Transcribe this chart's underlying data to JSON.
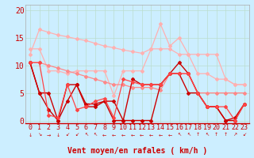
{
  "background_color": "#cceeff",
  "grid_color": "#aaddcc",
  "xlabel": "Vent moyen/en rafales ( km/h )",
  "xlabel_color": "#cc0000",
  "xlabel_fontsize": 7,
  "yticks": [
    0,
    5,
    10,
    15,
    20
  ],
  "xticks": [
    0,
    1,
    2,
    3,
    4,
    5,
    6,
    7,
    8,
    9,
    10,
    11,
    12,
    13,
    14,
    15,
    16,
    17,
    18,
    19,
    20,
    21,
    22,
    23
  ],
  "ylim": [
    -0.5,
    21
  ],
  "xlim": [
    -0.5,
    23.5
  ],
  "series": [
    {
      "comment": "light pink top - nearly straight diagonal from ~16.5 to ~6.5",
      "x": [
        0,
        1,
        2,
        3,
        4,
        5,
        6,
        7,
        8,
        9,
        10,
        11,
        12,
        13,
        14,
        15,
        16,
        17,
        18,
        19,
        20,
        21,
        22,
        23
      ],
      "y": [
        12,
        16.5,
        16.0,
        15.5,
        15.2,
        14.8,
        14.5,
        14.0,
        13.5,
        13.2,
        12.8,
        12.5,
        12.2,
        13.0,
        13.0,
        13.0,
        12.0,
        12.0,
        12.0,
        12.0,
        12.0,
        7.5,
        6.5,
        6.5
      ],
      "color": "#ffb0b0",
      "lw": 0.9,
      "marker": "D",
      "ms": 2.0
    },
    {
      "comment": "light pink second - humped line with peak at 14-16 area",
      "x": [
        0,
        1,
        2,
        3,
        4,
        5,
        6,
        7,
        8,
        9,
        10,
        11,
        12,
        13,
        14,
        15,
        16,
        17,
        18,
        19,
        20,
        21,
        22,
        23
      ],
      "y": [
        13,
        13,
        9,
        9,
        8.5,
        9.0,
        9.0,
        9.0,
        9.0,
        4.5,
        9.0,
        9.0,
        9.0,
        13.0,
        17.5,
        13.5,
        15.0,
        12.0,
        8.5,
        8.5,
        7.5,
        7.5,
        6.5,
        6.5
      ],
      "color": "#ffb0b0",
      "lw": 0.9,
      "marker": "D",
      "ms": 2.0
    },
    {
      "comment": "medium pink line - middle region",
      "x": [
        0,
        1,
        2,
        3,
        4,
        5,
        6,
        7,
        8,
        9,
        10,
        11,
        12,
        13,
        14,
        15,
        16,
        17,
        18,
        19,
        20,
        21,
        22,
        23
      ],
      "y": [
        10.5,
        10.5,
        10.0,
        9.5,
        9.0,
        8.5,
        8.0,
        7.5,
        7.0,
        6.5,
        6.5,
        6.0,
        6.0,
        6.0,
        5.5,
        8.5,
        8.5,
        8.5,
        5.0,
        5.0,
        5.0,
        5.0,
        5.0,
        5.0
      ],
      "color": "#ff8888",
      "lw": 0.9,
      "marker": "D",
      "ms": 2.0
    },
    {
      "comment": "dark red line 1 - zigzag bottom",
      "x": [
        0,
        1,
        2,
        3,
        4,
        5,
        6,
        7,
        8,
        9,
        10,
        11,
        12,
        13,
        14,
        15,
        16,
        17,
        18,
        19,
        20,
        21,
        22,
        23
      ],
      "y": [
        10.5,
        5.0,
        5.0,
        0.0,
        6.5,
        6.5,
        2.5,
        2.5,
        3.5,
        0.0,
        0.0,
        0.0,
        0.0,
        0.0,
        6.5,
        8.5,
        8.5,
        5.0,
        5.0,
        2.5,
        2.5,
        0.0,
        0.0,
        3.0
      ],
      "color": "#cc0000",
      "lw": 1.0,
      "marker": "D",
      "ms": 2.0
    },
    {
      "comment": "dark red line 2 - slightly different zigzag",
      "x": [
        0,
        1,
        2,
        3,
        4,
        5,
        6,
        7,
        8,
        9,
        10,
        11,
        12,
        13,
        14,
        15,
        16,
        17,
        18,
        19,
        20,
        21,
        22,
        23
      ],
      "y": [
        10.5,
        5.0,
        2.0,
        0.0,
        3.5,
        6.5,
        3.0,
        3.0,
        3.5,
        3.5,
        0.0,
        7.5,
        6.5,
        6.5,
        6.5,
        8.5,
        10.5,
        8.5,
        5.0,
        2.5,
        2.5,
        0.0,
        0.5,
        3.0
      ],
      "color": "#cc0000",
      "lw": 1.0,
      "marker": "D",
      "ms": 2.0
    },
    {
      "comment": "medium red line - spiky with peaks",
      "x": [
        0,
        1,
        2,
        3,
        4,
        5,
        6,
        7,
        8,
        9,
        10,
        11,
        12,
        13,
        14,
        15,
        16,
        17,
        18,
        19,
        20,
        21,
        22,
        23
      ],
      "y": [
        10.5,
        10.5,
        1.0,
        0.5,
        6.5,
        2.0,
        2.5,
        3.5,
        4.0,
        0.5,
        7.5,
        7.0,
        6.5,
        6.5,
        6.5,
        8.5,
        8.5,
        8.5,
        5.0,
        2.5,
        2.5,
        2.5,
        0.0,
        3.0
      ],
      "color": "#ff4444",
      "lw": 0.9,
      "marker": "D",
      "ms": 2.0
    }
  ],
  "arrow_symbols": [
    "↓",
    "↘",
    "→",
    "↓",
    "↙",
    "↙",
    "↖",
    "↖",
    "←",
    "←",
    "←",
    "←",
    "←",
    "←",
    "←",
    "←",
    "↖",
    "↖",
    "↑",
    "↖",
    "↑",
    "↑",
    "↗",
    "↙"
  ],
  "tick_label_color": "#cc0000",
  "tick_label_fontsize": 6
}
